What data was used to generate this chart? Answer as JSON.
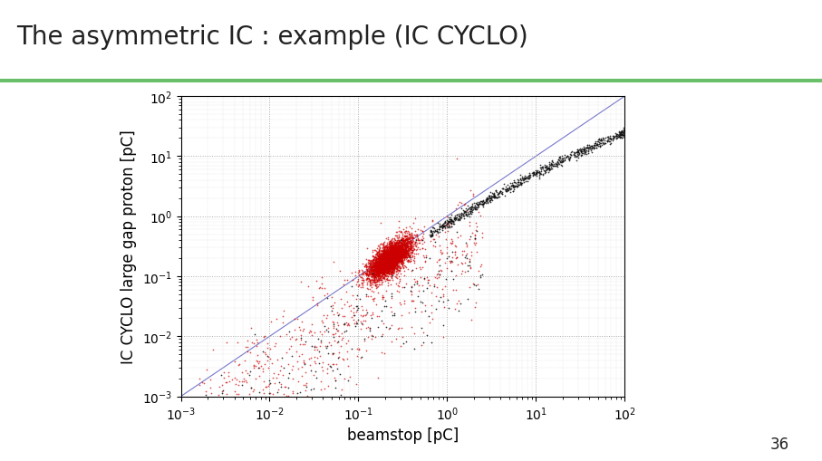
{
  "title": "The asymmetric IC : example (IC CYCLO)",
  "xlabel": "beamstop [pC]",
  "ylabel": "IC CYCLO large gap proton [pC]",
  "page_number": "36",
  "background_color": "#ffffff",
  "title_color": "#222222",
  "title_fontsize": 20,
  "axis_label_fontsize": 12,
  "grid_color": "#aaaaaa",
  "grid_linestyle": ":",
  "identity_line_color": "#7777cc",
  "scatter_red_color": "#cc0000",
  "scatter_dark_color": "#111111",
  "iba_green": "#5cb85c",
  "header_line_color": "#6abf6a",
  "n_red_points": 4000,
  "n_dark_points": 800,
  "seed": 42
}
